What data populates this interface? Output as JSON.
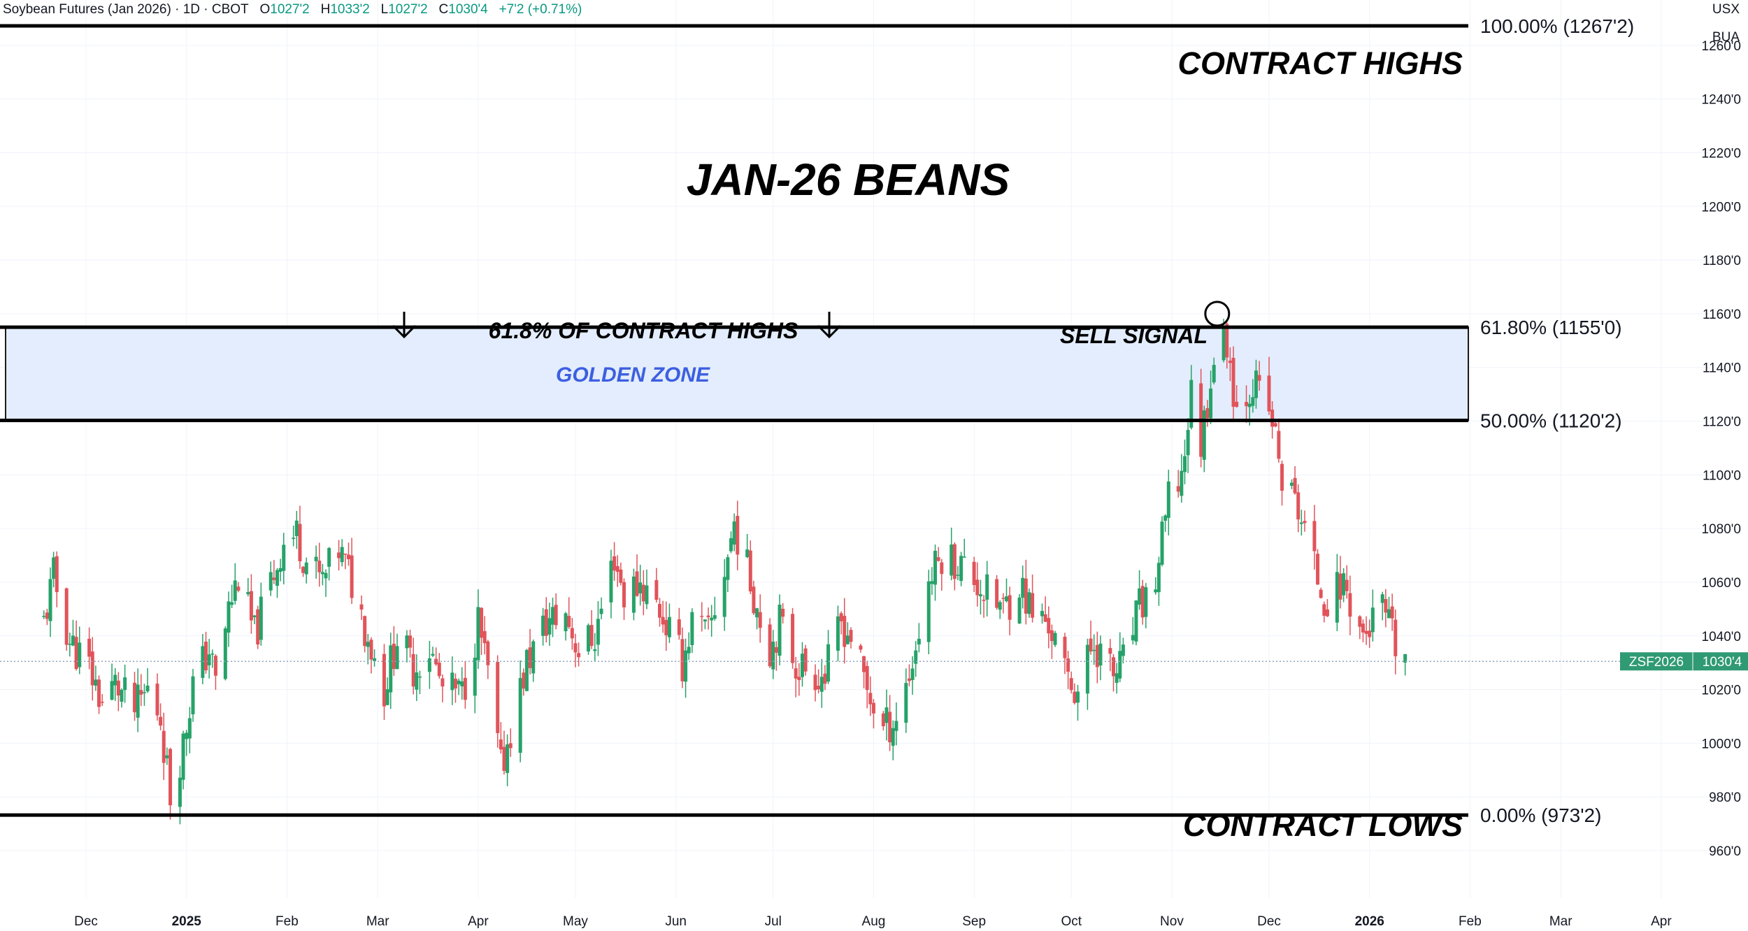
{
  "header": {
    "symbol": "Soybean Futures (Jan 2026) · 1D · CBOT",
    "o_label": "O",
    "o_value": "1027'2",
    "h_label": "H",
    "h_value": "1033'2",
    "l_label": "L",
    "l_value": "1027'2",
    "c_label": "C",
    "c_value": "1030'4",
    "change": "+7'2 (+0.71%)"
  },
  "currency": "USX",
  "unit": "BUA",
  "title": "JAN-26 BEANS",
  "annotations": {
    "contract_highs": "CONTRACT HIGHS",
    "contract_lows": "CONTRACT LOWS",
    "fib_note": "61.8% OF CONTRACT HIGHS",
    "sell_signal": "SELL SIGNAL",
    "golden_zone": "GOLDEN ZONE"
  },
  "price_tag": {
    "symbol": "ZSF2026",
    "value": "1030'4"
  },
  "colors": {
    "up": "#26a269",
    "down": "#e0545a",
    "zone": "#e3edfd",
    "zone_label": "#3d5fe0",
    "tag": "#2f9a73"
  },
  "chart_data": {
    "type": "candlestick",
    "title": "JAN-26 BEANS",
    "ylim": [
      955,
      1275
    ],
    "y_ticks": [
      "960'0",
      "980'0",
      "1000'0",
      "1020'0",
      "1040'0",
      "1060'0",
      "1080'0",
      "1100'0",
      "1120'0",
      "1140'0",
      "1160'0",
      "1180'0",
      "1200'0",
      "1220'0",
      "1240'0",
      "1260'0"
    ],
    "x_ticks": [
      {
        "label": "Dec",
        "date": "2024-12-01"
      },
      {
        "label": "2025",
        "date": "2025-01-01",
        "bold": true
      },
      {
        "label": "Feb",
        "date": "2025-02-01"
      },
      {
        "label": "Mar",
        "date": "2025-03-01"
      },
      {
        "label": "Apr",
        "date": "2025-04-01"
      },
      {
        "label": "May",
        "date": "2025-05-01"
      },
      {
        "label": "Jun",
        "date": "2025-06-01"
      },
      {
        "label": "Jul",
        "date": "2025-07-01"
      },
      {
        "label": "Aug",
        "date": "2025-08-01"
      },
      {
        "label": "Sep",
        "date": "2025-09-01"
      },
      {
        "label": "Oct",
        "date": "2025-10-01"
      },
      {
        "label": "Nov",
        "date": "2025-11-01"
      },
      {
        "label": "Dec",
        "date": "2025-12-01"
      },
      {
        "label": "2026",
        "date": "2026-01-01",
        "bold": true
      },
      {
        "label": "Feb",
        "date": "2026-02-01"
      },
      {
        "label": "Mar",
        "date": "2026-03-01"
      },
      {
        "label": "Apr",
        "date": "2026-04-01"
      }
    ],
    "fib_levels": [
      {
        "label": "100.00% (1267'2)",
        "price": 1267.25
      },
      {
        "label": "61.80% (1155'0)",
        "price": 1155.0
      },
      {
        "label": "50.00% (1120'2)",
        "price": 1120.25
      },
      {
        "label": "0.00% (973'2)",
        "price": 973.25
      }
    ],
    "golden_zone": {
      "low": 1120.25,
      "high": 1155.0
    },
    "sell_signal": {
      "date": "2025-11-15",
      "price": 1160
    },
    "last_price": 1030.5,
    "close_path": [
      [
        "2024-11-18",
        1045
      ],
      [
        "2024-11-21",
        1062
      ],
      [
        "2024-11-26",
        1038
      ],
      [
        "2024-12-02",
        1028
      ],
      [
        "2024-12-06",
        1015
      ],
      [
        "2024-12-10",
        1022
      ],
      [
        "2024-12-16",
        1012
      ],
      [
        "2024-12-20",
        1020
      ],
      [
        "2024-12-24",
        1010
      ],
      [
        "2024-12-27",
        980
      ],
      [
        "2024-12-31",
        1000
      ],
      [
        "2025-01-03",
        1022
      ],
      [
        "2025-01-08",
        1035
      ],
      [
        "2025-01-10",
        1022
      ],
      [
        "2025-01-14",
        1050
      ],
      [
        "2025-01-17",
        1062
      ],
      [
        "2025-01-22",
        1040
      ],
      [
        "2025-01-27",
        1060
      ],
      [
        "2025-01-31",
        1075
      ],
      [
        "2025-02-04",
        1078
      ],
      [
        "2025-02-07",
        1068
      ],
      [
        "2025-02-12",
        1060
      ],
      [
        "2025-02-17",
        1072
      ],
      [
        "2025-02-21",
        1060
      ],
      [
        "2025-02-26",
        1040
      ],
      [
        "2025-03-03",
        1020
      ],
      [
        "2025-03-07",
        1040
      ],
      [
        "2025-03-12",
        1028
      ],
      [
        "2025-03-17",
        1035
      ],
      [
        "2025-03-21",
        1020
      ],
      [
        "2025-03-27",
        1018
      ],
      [
        "2025-04-01",
        1045
      ],
      [
        "2025-04-04",
        1025
      ],
      [
        "2025-04-08",
        990
      ],
      [
        "2025-04-11",
        1005
      ],
      [
        "2025-04-16",
        1030
      ],
      [
        "2025-04-22",
        1045
      ],
      [
        "2025-04-28",
        1048
      ],
      [
        "2025-05-02",
        1035
      ],
      [
        "2025-05-07",
        1040
      ],
      [
        "2025-05-13",
        1070
      ],
      [
        "2025-05-16",
        1055
      ],
      [
        "2025-05-21",
        1060
      ],
      [
        "2025-05-27",
        1050
      ],
      [
        "2025-06-03",
        1030
      ],
      [
        "2025-06-06",
        1045
      ],
      [
        "2025-06-11",
        1040
      ],
      [
        "2025-06-17",
        1070
      ],
      [
        "2025-06-19",
        1082
      ],
      [
        "2025-06-24",
        1060
      ],
      [
        "2025-06-30",
        1035
      ],
      [
        "2025-07-03",
        1045
      ],
      [
        "2025-07-08",
        1030
      ],
      [
        "2025-07-11",
        1028
      ],
      [
        "2025-07-17",
        1025
      ],
      [
        "2025-07-22",
        1045
      ],
      [
        "2025-07-25",
        1040
      ],
      [
        "2025-07-30",
        1020
      ],
      [
        "2025-08-04",
        1005
      ],
      [
        "2025-08-08",
        1010
      ],
      [
        "2025-08-13",
        1030
      ],
      [
        "2025-08-18",
        1060
      ],
      [
        "2025-08-22",
        1070
      ],
      [
        "2025-08-27",
        1068
      ],
      [
        "2025-09-02",
        1060
      ],
      [
        "2025-09-05",
        1055
      ],
      [
        "2025-09-10",
        1050
      ],
      [
        "2025-09-15",
        1060
      ],
      [
        "2025-09-19",
        1048
      ],
      [
        "2025-09-24",
        1045
      ],
      [
        "2025-09-29",
        1025
      ],
      [
        "2025-10-03",
        1020
      ],
      [
        "2025-10-08",
        1038
      ],
      [
        "2025-10-14",
        1025
      ],
      [
        "2025-10-17",
        1030
      ],
      [
        "2025-10-22",
        1050
      ],
      [
        "2025-10-27",
        1060
      ],
      [
        "2025-10-31",
        1090
      ],
      [
        "2025-11-04",
        1100
      ],
      [
        "2025-11-07",
        1130
      ],
      [
        "2025-11-10",
        1112
      ],
      [
        "2025-11-14",
        1145
      ],
      [
        "2025-11-18",
        1150
      ],
      [
        "2025-11-21",
        1125
      ],
      [
        "2025-11-26",
        1135
      ],
      [
        "2025-12-02",
        1120
      ],
      [
        "2025-12-05",
        1098
      ],
      [
        "2025-12-10",
        1088
      ],
      [
        "2025-12-15",
        1065
      ],
      [
        "2025-12-19",
        1052
      ],
      [
        "2025-12-24",
        1060
      ],
      [
        "2025-12-30",
        1040
      ],
      [
        "2026-01-05",
        1050
      ],
      [
        "2026-01-09",
        1035
      ],
      [
        "2026-01-13",
        1030.5
      ]
    ]
  }
}
